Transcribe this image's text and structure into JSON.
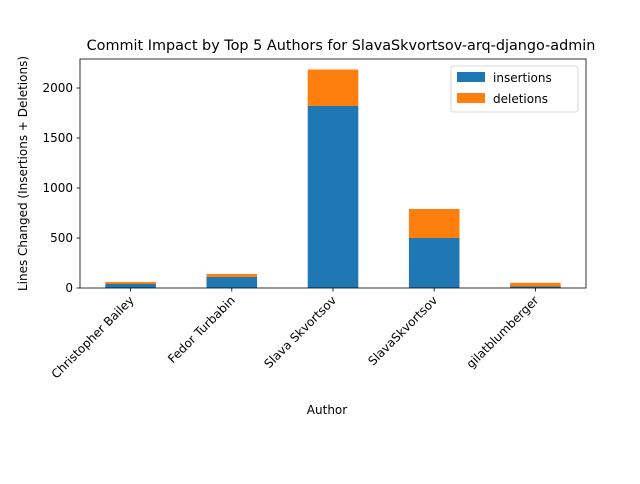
{
  "chart_data": {
    "type": "bar",
    "stacked": true,
    "title": "Commit Impact by Top 5 Authors for SlavaSkvortsov-arq-django-admin",
    "xlabel": "Author",
    "ylabel": "Lines Changed (Insertions + Deletions)",
    "categories": [
      "Christopher Bailey",
      "Fedor Turbabin",
      "Slava Skvortsov",
      "SlavaSkvortsov",
      "gilatblumberger"
    ],
    "series": [
      {
        "name": "insertions",
        "color": "#1f77b4",
        "values": [
          40,
          110,
          1820,
          500,
          15
        ]
      },
      {
        "name": "deletions",
        "color": "#ff7f0e",
        "values": [
          20,
          30,
          365,
          290,
          37
        ]
      }
    ],
    "ylim": [
      0,
      2290
    ],
    "yticks": [
      0,
      500,
      1000,
      1500,
      2000
    ],
    "grid": false,
    "legend_position": "top-right"
  }
}
